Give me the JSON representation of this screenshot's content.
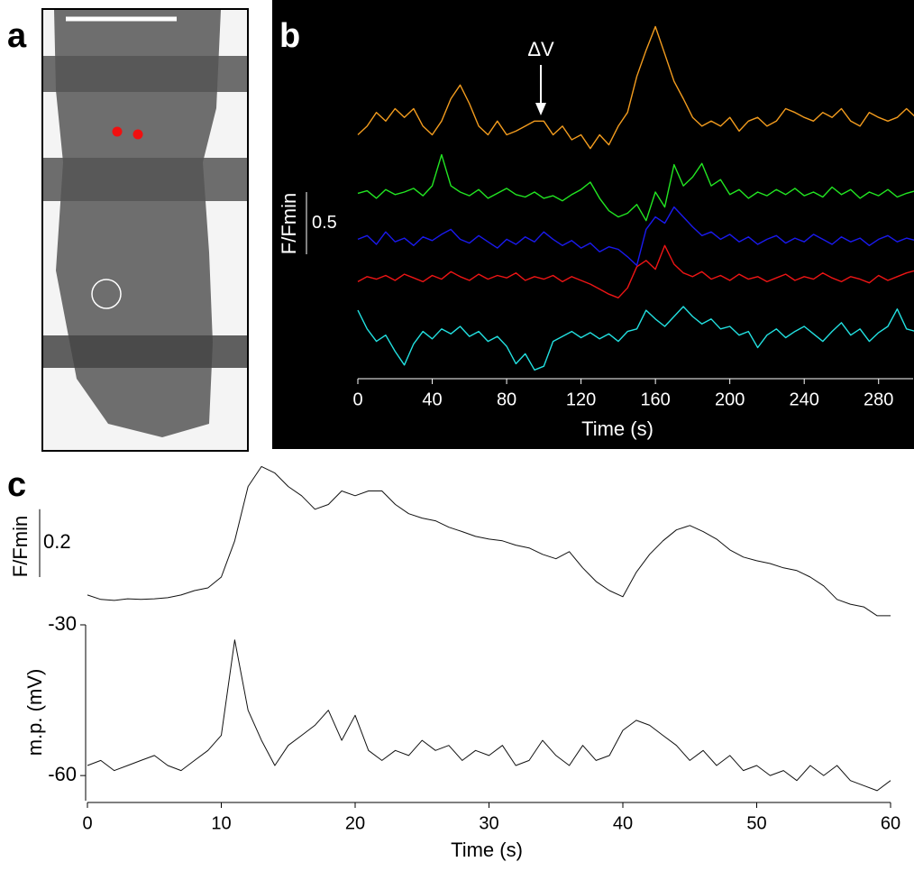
{
  "panel_labels": [
    "a",
    "b",
    "c"
  ],
  "chart_data": [
    {
      "type": "line",
      "xlabel": "Time (s)",
      "ylabel": "F/Fmin",
      "scale_bar": 0.5,
      "annotation": "ΔV",
      "xlim": [
        0,
        300
      ],
      "ylim": [
        0,
        3
      ],
      "xticks": [
        0,
        40,
        80,
        120,
        160,
        200,
        240,
        280
      ],
      "x": [
        0,
        5,
        10,
        15,
        20,
        25,
        30,
        35,
        40,
        45,
        50,
        55,
        60,
        65,
        70,
        75,
        80,
        85,
        90,
        95,
        100,
        105,
        110,
        115,
        120,
        125,
        130,
        135,
        140,
        145,
        150,
        155,
        160,
        165,
        170,
        175,
        180,
        185,
        190,
        195,
        200,
        205,
        210,
        215,
        220,
        225,
        230,
        235,
        240,
        245,
        250,
        255,
        260,
        265,
        270,
        275,
        280,
        285,
        290,
        295,
        300
      ],
      "series": [
        {
          "color": "#f39c1e",
          "values": [
            1.96,
            2.03,
            2.14,
            2.07,
            2.17,
            2.1,
            2.17,
            2.03,
            1.96,
            2.07,
            2.25,
            2.36,
            2.21,
            2.03,
            1.96,
            2.07,
            1.96,
            1.99,
            2.03,
            2.07,
            2.07,
            1.96,
            2.03,
            1.92,
            1.96,
            1.85,
            1.96,
            1.88,
            2.03,
            2.14,
            2.43,
            2.64,
            2.83,
            2.61,
            2.39,
            2.25,
            2.1,
            2.03,
            2.07,
            2.03,
            2.1,
            1.99,
            2.07,
            2.1,
            2.03,
            2.07,
            2.17,
            2.14,
            2.1,
            2.07,
            2.14,
            2.1,
            2.17,
            2.07,
            2.03,
            2.14,
            2.1,
            2.07,
            2.1,
            2.17,
            2.1
          ]
        },
        {
          "color": "#22e622",
          "values": [
            1.49,
            1.51,
            1.45,
            1.52,
            1.48,
            1.5,
            1.53,
            1.47,
            1.55,
            1.8,
            1.55,
            1.5,
            1.47,
            1.52,
            1.45,
            1.49,
            1.53,
            1.48,
            1.46,
            1.5,
            1.45,
            1.47,
            1.43,
            1.48,
            1.52,
            1.58,
            1.45,
            1.35,
            1.3,
            1.33,
            1.4,
            1.27,
            1.5,
            1.38,
            1.72,
            1.55,
            1.62,
            1.73,
            1.55,
            1.6,
            1.48,
            1.52,
            1.45,
            1.5,
            1.47,
            1.52,
            1.48,
            1.53,
            1.47,
            1.5,
            1.46,
            1.54,
            1.48,
            1.52,
            1.45,
            1.5,
            1.47,
            1.52,
            1.46,
            1.49,
            1.51
          ]
        },
        {
          "color": "#1a1aee",
          "values": [
            1.12,
            1.15,
            1.08,
            1.18,
            1.1,
            1.13,
            1.07,
            1.14,
            1.11,
            1.16,
            1.2,
            1.12,
            1.09,
            1.15,
            1.1,
            1.05,
            1.12,
            1.08,
            1.14,
            1.1,
            1.18,
            1.12,
            1.07,
            1.11,
            1.05,
            1.09,
            1.02,
            1.06,
            1.04,
            0.98,
            0.91,
            1.2,
            1.3,
            1.25,
            1.38,
            1.3,
            1.22,
            1.15,
            1.18,
            1.12,
            1.16,
            1.1,
            1.14,
            1.08,
            1.12,
            1.15,
            1.09,
            1.13,
            1.1,
            1.16,
            1.12,
            1.08,
            1.14,
            1.1,
            1.13,
            1.07,
            1.12,
            1.15,
            1.1,
            1.13,
            1.11
          ]
        },
        {
          "color": "#ee1515",
          "values": [
            0.78,
            0.82,
            0.8,
            0.83,
            0.79,
            0.84,
            0.81,
            0.78,
            0.83,
            0.8,
            0.86,
            0.82,
            0.79,
            0.84,
            0.8,
            0.83,
            0.81,
            0.85,
            0.79,
            0.82,
            0.8,
            0.83,
            0.78,
            0.82,
            0.79,
            0.76,
            0.72,
            0.68,
            0.65,
            0.73,
            0.9,
            0.95,
            0.88,
            1.07,
            0.92,
            0.85,
            0.82,
            0.86,
            0.8,
            0.83,
            0.79,
            0.84,
            0.8,
            0.82,
            0.78,
            0.81,
            0.84,
            0.79,
            0.82,
            0.8,
            0.85,
            0.81,
            0.78,
            0.82,
            0.8,
            0.77,
            0.83,
            0.79,
            0.82,
            0.85,
            0.87
          ]
        },
        {
          "color": "#22e0e0",
          "values": [
            0.55,
            0.4,
            0.3,
            0.35,
            0.22,
            0.11,
            0.28,
            0.38,
            0.32,
            0.4,
            0.36,
            0.42,
            0.34,
            0.38,
            0.3,
            0.34,
            0.26,
            0.12,
            0.2,
            0.07,
            0.1,
            0.3,
            0.34,
            0.38,
            0.33,
            0.37,
            0.32,
            0.36,
            0.3,
            0.38,
            0.4,
            0.55,
            0.48,
            0.42,
            0.5,
            0.58,
            0.5,
            0.44,
            0.48,
            0.4,
            0.42,
            0.35,
            0.38,
            0.25,
            0.35,
            0.4,
            0.33,
            0.38,
            0.42,
            0.36,
            0.3,
            0.38,
            0.45,
            0.35,
            0.4,
            0.3,
            0.37,
            0.42,
            0.56,
            0.4,
            0.38
          ]
        }
      ]
    },
    {
      "type": "line",
      "ylabel": "F/Fmin",
      "scale_bar": 0.2,
      "xlim": [
        0,
        60
      ],
      "ylim": [
        0,
        0.5
      ],
      "x": [
        0,
        1,
        2,
        3,
        4,
        5,
        6,
        7,
        8,
        9,
        10,
        11,
        12,
        13,
        14,
        15,
        16,
        17,
        18,
        19,
        20,
        21,
        22,
        23,
        24,
        25,
        26,
        27,
        28,
        29,
        30,
        31,
        32,
        33,
        34,
        35,
        36,
        37,
        38,
        39,
        40,
        41,
        42,
        43,
        44,
        45,
        46,
        47,
        48,
        49,
        50,
        51,
        52,
        53,
        54,
        55,
        56,
        57,
        58,
        59,
        60
      ],
      "series": [
        {
          "color": "#111111",
          "values": [
            0.08,
            0.067,
            0.064,
            0.069,
            0.067,
            0.069,
            0.072,
            0.08,
            0.093,
            0.101,
            0.133,
            0.24,
            0.4,
            0.459,
            0.44,
            0.4,
            0.373,
            0.333,
            0.347,
            0.387,
            0.373,
            0.387,
            0.387,
            0.347,
            0.32,
            0.307,
            0.299,
            0.28,
            0.267,
            0.253,
            0.245,
            0.24,
            0.227,
            0.219,
            0.2,
            0.187,
            0.208,
            0.16,
            0.12,
            0.093,
            0.075,
            0.147,
            0.2,
            0.24,
            0.272,
            0.285,
            0.267,
            0.245,
            0.213,
            0.192,
            0.181,
            0.173,
            0.16,
            0.152,
            0.133,
            0.107,
            0.067,
            0.053,
            0.045,
            0.019,
            0.019
          ]
        }
      ]
    },
    {
      "type": "line",
      "xlabel": "Time (s)",
      "ylabel": "m.p. (mV)",
      "xlim": [
        0,
        60
      ],
      "ylim": [
        -65,
        -30
      ],
      "xticks": [
        0,
        10,
        20,
        30,
        40,
        50,
        60
      ],
      "yticks": [
        -30,
        -60
      ],
      "x": [
        0,
        1,
        2,
        3,
        4,
        5,
        6,
        7,
        8,
        9,
        10,
        11,
        12,
        13,
        14,
        15,
        16,
        17,
        18,
        19,
        20,
        21,
        22,
        23,
        24,
        25,
        26,
        27,
        28,
        29,
        30,
        31,
        32,
        33,
        34,
        35,
        36,
        37,
        38,
        39,
        40,
        41,
        42,
        43,
        44,
        45,
        46,
        47,
        48,
        49,
        50,
        51,
        52,
        53,
        54,
        55,
        56,
        57,
        58,
        59,
        60
      ],
      "series": [
        {
          "color": "#111111",
          "values": [
            -58,
            -57,
            -59,
            -58,
            -57,
            -56,
            -58,
            -59,
            -57,
            -55,
            -52,
            -33,
            -47,
            -53,
            -58,
            -54,
            -52,
            -50,
            -47,
            -53,
            -48,
            -55,
            -57,
            -55,
            -56,
            -53,
            -55,
            -54,
            -57,
            -55,
            -56,
            -54,
            -58,
            -57,
            -53,
            -56,
            -58,
            -54,
            -57,
            -56,
            -51,
            -49,
            -50,
            -52,
            -54,
            -57,
            -55,
            -58,
            -56,
            -59,
            -58,
            -60,
            -59,
            -61,
            -58,
            -60,
            -58,
            -61,
            -62,
            -63,
            -61
          ]
        }
      ]
    }
  ]
}
